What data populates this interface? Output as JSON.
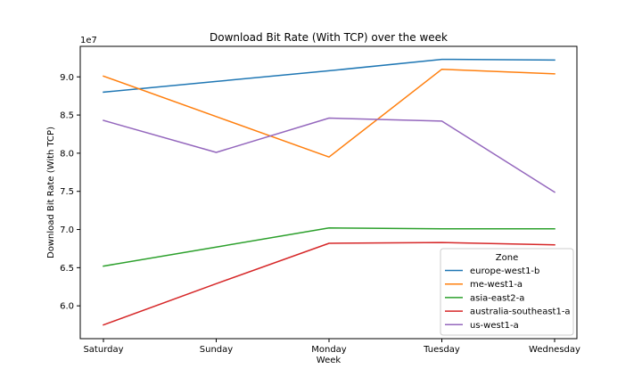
{
  "chart_data": {
    "type": "line",
    "title": "Download Bit Rate (With TCP) over the week",
    "xlabel": "Week",
    "ylabel": "Download Bit Rate (With TCP)",
    "y_offset_label": "1e7",
    "categories": [
      "Saturday",
      "Sunday",
      "Monday",
      "Tuesday",
      "Wednesday"
    ],
    "ylim": [
      5.57,
      9.4
    ],
    "y_ticks": [
      6.0,
      6.5,
      7.0,
      7.5,
      8.0,
      8.5,
      9.0
    ],
    "y_tick_labels": [
      "6.0",
      "6.5",
      "7.0",
      "7.5",
      "8.0",
      "8.5",
      "9.0"
    ],
    "grid": false,
    "legend_title": "Zone",
    "legend_position": "lower-right",
    "series": [
      {
        "name": "europe-west1-b",
        "color": "#1f77b4",
        "values": [
          8.8,
          8.94,
          9.08,
          9.23,
          9.22
        ]
      },
      {
        "name": "me-west1-a",
        "color": "#ff7f0e",
        "values": [
          9.01,
          8.48,
          7.95,
          9.1,
          9.04
        ]
      },
      {
        "name": "asia-east2-a",
        "color": "#2ca02c",
        "values": [
          6.52,
          6.77,
          7.02,
          7.01,
          7.01
        ]
      },
      {
        "name": "australia-southeast1-a",
        "color": "#d62728",
        "values": [
          5.75,
          6.29,
          6.82,
          6.83,
          6.8
        ]
      },
      {
        "name": "us-west1-a",
        "color": "#9467bd",
        "values": [
          8.43,
          8.01,
          8.46,
          8.42,
          7.49
        ]
      }
    ]
  }
}
